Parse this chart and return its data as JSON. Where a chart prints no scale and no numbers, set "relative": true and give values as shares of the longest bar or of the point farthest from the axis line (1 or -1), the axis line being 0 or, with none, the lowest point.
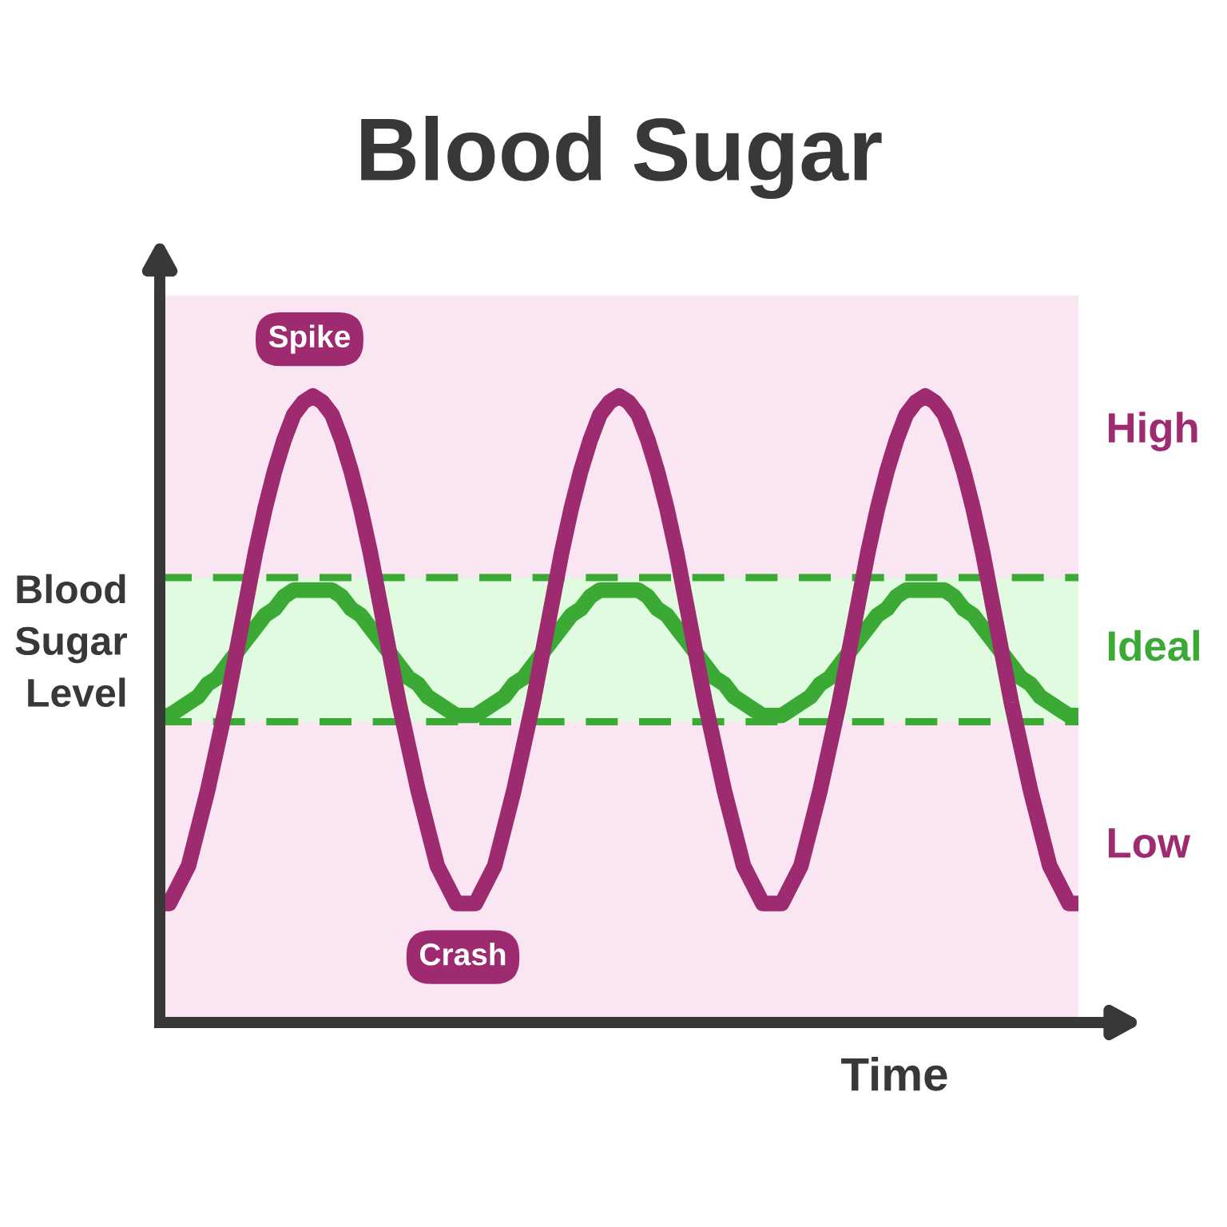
{
  "chart_data": {
    "type": "line",
    "title": "Blood Sugar",
    "xlabel": "Time",
    "ylabel": "Blood Sugar Level",
    "relative": true,
    "categories": [
      null,
      null,
      null,
      null,
      null,
      null,
      null,
      null,
      null,
      null,
      null,
      null,
      null,
      null,
      null,
      null,
      null,
      null,
      null,
      null,
      null,
      null,
      null,
      null,
      null,
      null,
      null,
      null,
      null,
      null,
      null,
      null,
      null,
      null,
      null,
      null,
      null,
      null,
      null,
      null,
      null,
      null,
      null,
      null,
      null,
      null,
      null,
      null,
      null,
      null,
      null,
      null,
      null,
      null,
      null,
      null,
      null,
      null,
      null,
      null,
      null,
      null,
      null,
      null,
      null,
      null,
      null,
      null,
      null,
      null,
      null,
      null,
      null,
      null,
      null,
      null,
      null,
      null,
      null,
      null,
      null,
      null,
      null,
      null,
      null,
      null,
      null,
      null,
      null,
      null,
      null,
      null,
      null,
      null,
      null,
      null,
      null
    ],
    "series": [
      {
        "color": "#3aaa35",
        "values": [
          0.49,
          0.49,
          0.5,
          0.51,
          0.52,
          0.54,
          0.55,
          0.57,
          0.59,
          0.61,
          0.63,
          0.65,
          0.66,
          0.68,
          0.69,
          0.69,
          0.69,
          0.69,
          0.69,
          0.68,
          0.66,
          0.65,
          0.63,
          0.61,
          0.59,
          0.57,
          0.55,
          0.54,
          0.52,
          0.51,
          0.5,
          0.49,
          0.49,
          0.49,
          0.5,
          0.51,
          0.52,
          0.54,
          0.55,
          0.57,
          0.59,
          0.61,
          0.63,
          0.65,
          0.66,
          0.68,
          0.69,
          0.69,
          0.69,
          0.69,
          0.69,
          0.68,
          0.66,
          0.65,
          0.63,
          0.61,
          0.59,
          0.57,
          0.55,
          0.54,
          0.52,
          0.51,
          0.5,
          0.49,
          0.49,
          0.49,
          0.5,
          0.51,
          0.52,
          0.54,
          0.55,
          0.57,
          0.59,
          0.61,
          0.63,
          0.65,
          0.66,
          0.68,
          0.69,
          0.69,
          0.69,
          0.69,
          0.69,
          0.68,
          0.66,
          0.65,
          0.63,
          0.61,
          0.59,
          0.57,
          0.55,
          0.54,
          0.52,
          0.51,
          0.5,
          0.49,
          0.49
        ]
      },
      {
        "color": "#9e2a70",
        "values": [
          0.19,
          0.19,
          0.22,
          0.25,
          0.31,
          0.37,
          0.44,
          0.51,
          0.59,
          0.67,
          0.75,
          0.82,
          0.88,
          0.93,
          0.97,
          0.99,
          1.0,
          0.99,
          0.97,
          0.93,
          0.88,
          0.82,
          0.75,
          0.67,
          0.59,
          0.51,
          0.44,
          0.37,
          0.31,
          0.25,
          0.22,
          0.19,
          0.19,
          0.19,
          0.22,
          0.25,
          0.31,
          0.37,
          0.44,
          0.51,
          0.59,
          0.67,
          0.75,
          0.82,
          0.88,
          0.93,
          0.97,
          0.99,
          1.0,
          0.99,
          0.97,
          0.93,
          0.88,
          0.82,
          0.75,
          0.67,
          0.59,
          0.51,
          0.44,
          0.37,
          0.31,
          0.25,
          0.22,
          0.19,
          0.19,
          0.19,
          0.22,
          0.25,
          0.31,
          0.37,
          0.44,
          0.51,
          0.59,
          0.67,
          0.75,
          0.82,
          0.88,
          0.93,
          0.97,
          0.99,
          1.0,
          0.99,
          0.97,
          0.93,
          0.88,
          0.82,
          0.75,
          0.67,
          0.59,
          0.51,
          0.44,
          0.37,
          0.31,
          0.25,
          0.22,
          0.19,
          0.19
        ]
      }
    ],
    "bands": [
      {
        "axis": "y",
        "from": 0.48,
        "to": 0.71,
        "label": "Ideal",
        "color": "#e0fbe0"
      }
    ],
    "ref_lines": [
      {
        "axis": "y",
        "value": 0.71,
        "color": "#3aaa35",
        "line_style": "dashed"
      },
      {
        "axis": "y",
        "value": 0.48,
        "color": "#3aaa35",
        "line_style": "dashed"
      }
    ],
    "annotations": [
      "Spike",
      "Crash",
      "High",
      "Low"
    ]
  }
}
